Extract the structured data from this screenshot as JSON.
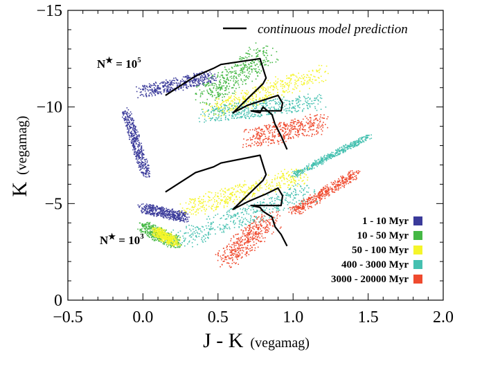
{
  "chart_data": {
    "type": "scatter",
    "xlabel": "J - K",
    "xlabel_unit": "(vegamag)",
    "ylabel": "K",
    "ylabel_unit": "(vegamag)",
    "xlim": [
      -0.5,
      2.0
    ],
    "ylim": [
      0,
      -15
    ],
    "y_inverted": true,
    "x_ticks": [
      -0.5,
      0.0,
      0.5,
      1.0,
      1.5,
      2.0
    ],
    "x_tick_labels": [
      "−0.5",
      "0.0",
      "0.5",
      "1.0",
      "1.5",
      "2.0"
    ],
    "y_ticks": [
      0,
      -5,
      -10,
      -15
    ],
    "y_tick_labels": [
      "0",
      "−5",
      "−10",
      "−15"
    ],
    "series": [
      {
        "name": "1 - 10 Myr",
        "color": "#3a3a9a",
        "regions": [
          {
            "x": [
              0.0,
              0.45
            ],
            "y": [
              -10.8,
              -11.6
            ],
            "width": 0.28
          },
          {
            "x": [
              0.0,
              0.28
            ],
            "y": [
              -4.8,
              -4.3
            ],
            "width": 0.22
          },
          {
            "x": [
              -0.12,
              0.02
            ],
            "y": [
              -9.8,
              -6.5
            ],
            "width": 0.18
          }
        ]
      },
      {
        "name": "10 - 50 Myr",
        "color": "#45b845",
        "regions": [
          {
            "x": [
              0.42,
              0.82
            ],
            "y": [
              -10.6,
              -12.8
            ],
            "width": 0.5
          },
          {
            "x": [
              0.0,
              0.22
            ],
            "y": [
              -3.8,
              -3.0
            ],
            "width": 0.26
          }
        ]
      },
      {
        "name": "50 - 100 Myr",
        "color": "#f5f52a",
        "regions": [
          {
            "x": [
              0.45,
              1.18
            ],
            "y": [
              -9.8,
              -11.8
            ],
            "width": 0.4
          },
          {
            "x": [
              0.3,
              1.05
            ],
            "y": [
              -4.8,
              -6.5
            ],
            "width": 0.38
          },
          {
            "x": [
              0.08,
              0.22
            ],
            "y": [
              -3.6,
              -3.0
            ],
            "width": 0.2
          }
        ]
      },
      {
        "name": "400 - 3000 Myr",
        "color": "#45c0b0",
        "regions": [
          {
            "x": [
              0.42,
              1.15
            ],
            "y": [
              -9.6,
              -10.3
            ],
            "width": 0.38
          },
          {
            "x": [
              0.25,
              1.1
            ],
            "y": [
              -3.2,
              -5.6
            ],
            "width": 0.45
          },
          {
            "x": [
              1.0,
              1.5
            ],
            "y": [
              -6.5,
              -8.5
            ],
            "width": 0.12
          }
        ]
      },
      {
        "name": "3000 - 20000 Myr",
        "color": "#ef4a2e",
        "regions": [
          {
            "x": [
              0.72,
              1.18
            ],
            "y": [
              -8.4,
              -9.2
            ],
            "width": 0.45
          },
          {
            "x": [
              0.55,
              0.85
            ],
            "y": [
              -2.1,
              -4.3
            ],
            "width": 0.42
          },
          {
            "x": [
              1.0,
              1.42
            ],
            "y": [
              -4.6,
              -6.6
            ],
            "width": 0.2
          }
        ]
      }
    ],
    "model_curve": {
      "name": "continuous model prediction",
      "color": "#000000",
      "segments": [
        {
          "x": [
            0.15,
            0.35,
            0.47,
            0.52,
            0.78,
            0.8,
            0.82,
            0.8,
            0.6,
            0.7,
            0.82,
            0.9,
            0.93,
            0.92,
            0.72,
            0.78,
            0.8,
            0.86,
            0.88,
            0.92,
            0.96
          ],
          "y": [
            -10.6,
            -11.6,
            -12.0,
            -12.2,
            -12.5,
            -12.0,
            -11.5,
            -11.2,
            -9.7,
            -10.1,
            -10.4,
            -10.6,
            -10.2,
            -9.8,
            -9.8,
            -9.7,
            -10.0,
            -9.6,
            -9.1,
            -8.5,
            -7.8
          ]
        },
        {
          "x": [
            0.15,
            0.35,
            0.47,
            0.52,
            0.78,
            0.8,
            0.82,
            0.8,
            0.6,
            0.7,
            0.82,
            0.9,
            0.93,
            0.92,
            0.72,
            0.78,
            0.8,
            0.86,
            0.88,
            0.92,
            0.96
          ],
          "y": [
            -5.6,
            -6.6,
            -6.9,
            -7.1,
            -7.5,
            -7.0,
            -6.5,
            -6.2,
            -4.7,
            -5.1,
            -5.5,
            -5.8,
            -5.4,
            -4.9,
            -4.9,
            -4.8,
            -4.6,
            -4.3,
            -3.8,
            -3.4,
            -2.8
          ]
        }
      ]
    },
    "legend": {
      "placement": "lower-right",
      "entries": [
        "1 - 10 Myr",
        "10 - 50 Myr",
        "50 - 100 Myr",
        "400 - 3000 Myr",
        "3000 - 20000 Myr"
      ]
    },
    "model_legend_placement": "top-right",
    "annotations": [
      {
        "text_base": "N",
        "star": "★",
        "eq": " = 10",
        "exp": "5"
      },
      {
        "text_base": "N",
        "star": "★",
        "eq": " = 10",
        "exp": "3"
      }
    ]
  }
}
